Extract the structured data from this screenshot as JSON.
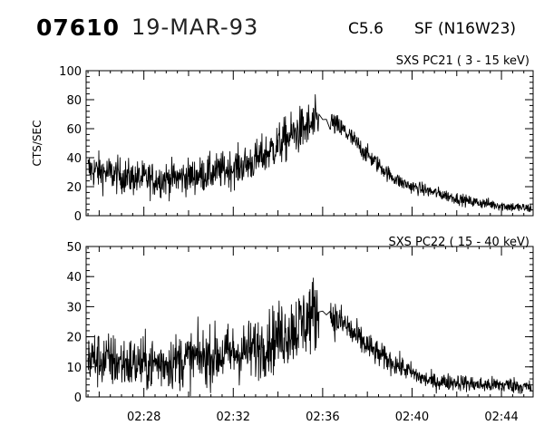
{
  "header": {
    "event_id": "07610",
    "date": "19-MAR-93",
    "goes_class": "C5.6",
    "location": "SF (N16W23)"
  },
  "colors": {
    "line": "#000000",
    "axes": "#000000",
    "background": "#ffffff"
  },
  "chart_data": [
    {
      "type": "line",
      "title": "SXS PC21  (  3 - 15 keV)",
      "xlabel": "",
      "ylabel": "CTS/SEC",
      "xlim": [
        "02:25:25",
        "02:45:25"
      ],
      "ylim": [
        0,
        100
      ],
      "yticks": [
        0,
        20,
        40,
        60,
        80,
        100
      ],
      "xticks": [
        "02:28",
        "02:32",
        "02:36",
        "02:40",
        "02:44"
      ],
      "grid": false,
      "series": [
        {
          "x": [
            "02:25:30",
            "02:26:30",
            "02:27:30",
            "02:28:30",
            "02:29:30",
            "02:30:30",
            "02:31:30",
            "02:32:30",
            "02:33:00",
            "02:33:30",
            "02:34:00",
            "02:34:30",
            "02:35:00",
            "02:35:30",
            "02:35:45",
            "02:36:00",
            "02:36:15",
            "02:36:30",
            "02:37:00",
            "02:37:30",
            "02:38:00",
            "02:38:30",
            "02:39:00",
            "02:39:30",
            "02:40:00",
            "02:40:30",
            "02:41:00",
            "02:41:30",
            "02:42:00",
            "02:42:30",
            "02:43:00",
            "02:43:30",
            "02:44:00",
            "02:44:30",
            "02:45:20"
          ],
          "y": [
            32,
            29,
            26,
            25,
            26,
            28,
            31,
            35,
            38,
            43,
            49,
            54,
            59,
            62,
            64,
            66,
            67,
            63,
            58,
            50,
            42,
            35,
            28,
            23,
            20,
            18,
            16,
            14,
            12,
            10,
            9,
            8,
            7,
            6,
            5
          ]
        }
      ]
    },
    {
      "type": "line",
      "title": "SXS PC22  ( 15 - 40 keV)",
      "xlabel": "",
      "ylabel": "",
      "xlim": [
        "02:25:25",
        "02:45:25"
      ],
      "ylim": [
        0,
        50
      ],
      "yticks": [
        0,
        10,
        20,
        30,
        40,
        50
      ],
      "xticks": [
        "02:28",
        "02:32",
        "02:36",
        "02:40",
        "02:44"
      ],
      "grid": false,
      "series": [
        {
          "x": [
            "02:25:30",
            "02:26:30",
            "02:27:30",
            "02:28:30",
            "02:29:30",
            "02:30:30",
            "02:31:30",
            "02:32:30",
            "02:33:00",
            "02:33:30",
            "02:34:00",
            "02:34:30",
            "02:35:00",
            "02:35:30",
            "02:36:00",
            "02:36:30",
            "02:37:00",
            "02:37:30",
            "02:38:00",
            "02:38:30",
            "02:39:00",
            "02:39:30",
            "02:40:00",
            "02:40:30",
            "02:41:00",
            "02:42:00",
            "02:43:00",
            "02:44:00",
            "02:44:30",
            "02:45:20"
          ],
          "y": [
            13,
            12,
            11,
            11,
            12,
            13,
            14,
            15,
            16,
            18,
            20,
            22,
            24,
            27,
            29,
            26,
            24,
            20,
            17,
            14,
            12,
            10,
            8,
            6,
            5,
            5,
            4,
            4,
            4,
            3
          ]
        }
      ]
    }
  ]
}
